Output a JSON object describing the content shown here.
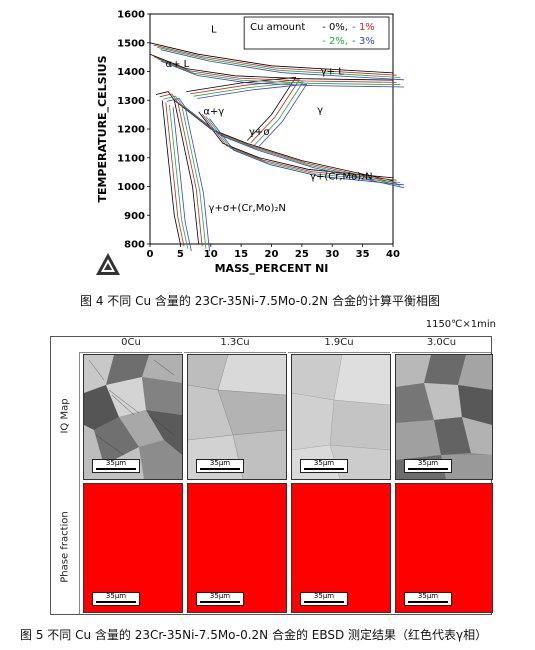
{
  "figure4": {
    "caption": "图 4  不同 Cu 含量的 23Cr-35Ni-7.5Mo-0.2N 合金的计算平衡相图",
    "xlabel": "MASS_PERCENT NI",
    "ylabel": "TEMPERATURE_CELSIUS",
    "xticks": [
      "0",
      "5",
      "10",
      "15",
      "20",
      "25",
      "30",
      "35",
      "40"
    ],
    "yticks": [
      "800",
      "900",
      "1000",
      "1100",
      "1200",
      "1300",
      "1400",
      "1500",
      "1600"
    ],
    "legend": {
      "title": "Cu amount",
      "entries": [
        {
          "label": "0%",
          "color": "#000000"
        },
        {
          "label": "1%",
          "color": "#cc2222"
        },
        {
          "label": "2%",
          "color": "#22aa33"
        },
        {
          "label": "3%",
          "color": "#3344cc"
        }
      ]
    },
    "regions": [
      {
        "label": "L",
        "x": 10.5,
        "y": 1535
      },
      {
        "label": "α+ L",
        "x": 4.5,
        "y": 1415
      },
      {
        "label": "γ+ L",
        "x": 30,
        "y": 1390
      },
      {
        "label": "α+γ",
        "x": 10.5,
        "y": 1250
      },
      {
        "label": "γ",
        "x": 28,
        "y": 1255
      },
      {
        "label": "γ+σ",
        "x": 18,
        "y": 1180
      },
      {
        "label": "γ+(Cr,Mo)₂N",
        "x": 31.5,
        "y": 1025
      },
      {
        "label": "γ+σ+(Cr,Mo)₂N",
        "x": 16,
        "y": 915
      }
    ]
  },
  "figure5": {
    "condition": "1150℃×1min",
    "columns": [
      "0Cu",
      "1.3Cu",
      "1.9Cu",
      "3.0Cu"
    ],
    "rows": [
      "IQ Map",
      "Phase fraction"
    ],
    "scale_label": "35μm",
    "phase_color": "#ff0000",
    "caption": "图 5 不同 Cu 含量的 23Cr-35Ni-7.5Mo-0.2N 合金的 EBSD 测定结果（红色代表γ相）"
  },
  "logo": "thermo-calc-logo"
}
